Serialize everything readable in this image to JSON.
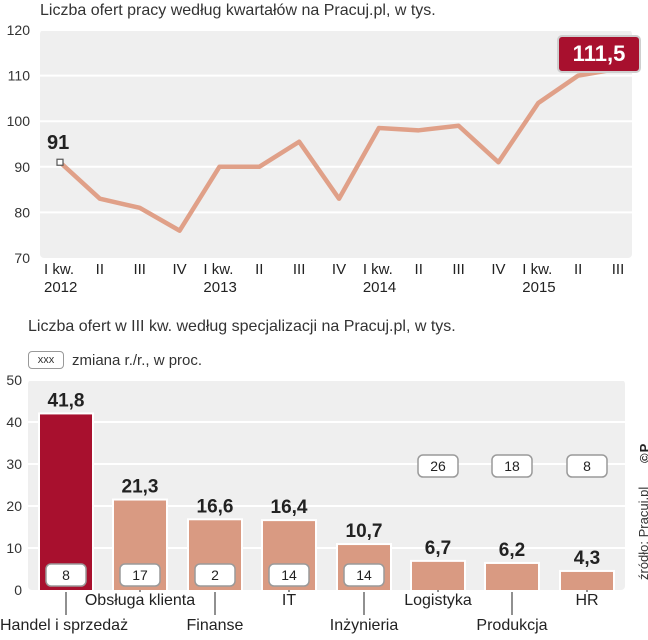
{
  "titles": {
    "top": "Liczba ofert pracy według kwartałów na Pracuj.pl, w tys.",
    "bottom": "Liczba ofert w III kw. według specjalizacji na Pracuj.pl, w tys."
  },
  "legend": {
    "box_text": "xxx",
    "text": "zmiana r./r., w proc."
  },
  "source": "źródło: Pracuj.pl",
  "logo": "©P",
  "colors": {
    "line": "#e0a088",
    "bar": "#d99a82",
    "highlight": "#a8102e",
    "panel": "#efefef"
  },
  "chart_data": [
    {
      "type": "line",
      "title": "Liczba ofert pracy według kwartałów na Pracuj.pl, w tys.",
      "x_quarters": [
        "I kw.",
        "II",
        "III",
        "IV",
        "I kw.",
        "II",
        "III",
        "IV",
        "I kw.",
        "II",
        "III",
        "IV",
        "I kw.",
        "II",
        "III"
      ],
      "x_years": [
        {
          "label": "2012",
          "index": 0
        },
        {
          "label": "2013",
          "index": 4
        },
        {
          "label": "2014",
          "index": 8
        },
        {
          "label": "2015",
          "index": 12
        }
      ],
      "values": [
        91,
        83,
        81,
        76,
        90,
        90,
        95.5,
        83,
        98.5,
        98,
        99,
        91,
        104,
        110,
        111.5
      ],
      "ylim": [
        70,
        120
      ],
      "yticks": [
        70,
        80,
        90,
        100,
        110,
        120
      ],
      "annotations": [
        {
          "index": 0,
          "text": "91"
        },
        {
          "index": 14,
          "text": "111,5"
        }
      ]
    },
    {
      "type": "bar",
      "title": "Liczba ofert w III kw. według specjalizacji na Pracuj.pl, w tys.",
      "categories": [
        "Handel i sprzedaż",
        "Obsługa klienta",
        "Finanse",
        "IT",
        "Inżynieria",
        "Logistyka",
        "Produkcja",
        "HR"
      ],
      "values": [
        41.8,
        21.3,
        16.6,
        16.4,
        10.7,
        6.7,
        6.2,
        4.3
      ],
      "value_labels": [
        "41,8",
        "21,3",
        "16,6",
        "16,4",
        "10,7",
        "6,7",
        "6,2",
        "4,3"
      ],
      "yoy_change_pct": [
        "8",
        "17",
        "2",
        "14",
        "14",
        "26",
        "18",
        "8"
      ],
      "highlight_index": 0,
      "ylim": [
        0,
        50
      ],
      "yticks": [
        0,
        10,
        20,
        30,
        40,
        50
      ]
    }
  ]
}
